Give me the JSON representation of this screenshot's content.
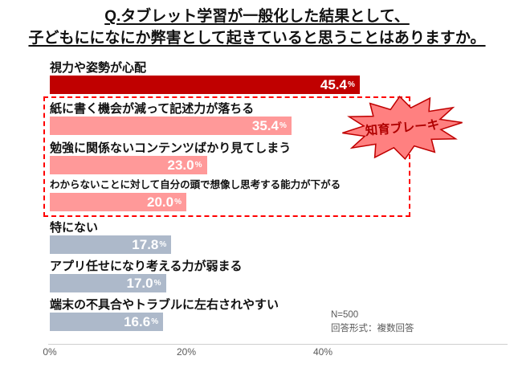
{
  "title": {
    "line1": "Q.タブレット学習が一般化した結果として、",
    "line2": "子どもにになにか弊害として起きていると思うことはありますか。"
  },
  "chart_data": {
    "type": "bar",
    "orientation": "horizontal",
    "categories": [
      "視力や姿勢が心配",
      "紙に書く機会が減って記述力が落ちる",
      "勉強に関係ないコンテンツばかり見てしまう",
      "わからないことに対して自分の頭で想像し思考する能力が下がる",
      "特にない",
      "アプリ任せになり考える力が弱まる",
      "端末の不具合やトラブルに左右されやすい"
    ],
    "values": [
      45.4,
      35.4,
      23.0,
      20.0,
      17.8,
      17.0,
      16.6
    ],
    "value_suffix": "%",
    "bar_colors": [
      "#C00000",
      "#FF9999",
      "#FF9999",
      "#FF9999",
      "#ADB9CA",
      "#ADB9CA",
      "#ADB9CA"
    ],
    "xlim": [
      0,
      67
    ],
    "x_tick_values": [
      0,
      20,
      40
    ],
    "x_tick_labels": [
      "0%",
      "20%",
      "40%"
    ],
    "highlighted_rows": [
      1,
      2,
      3
    ],
    "annotation": "知育ブレーキ",
    "legend": "none",
    "grid": false
  },
  "footnote": {
    "line1": "N=500",
    "line2": "回答形式：複数回答"
  },
  "colors": {
    "bar_primary": "#C00000",
    "bar_highlight": "#FF9999",
    "bar_neutral": "#ADB9CA",
    "highlight_box_border": "#FF0000",
    "annotation_fill": "#FF8080",
    "annotation_border": "#C00000",
    "annotation_text": "#B00000",
    "value_text": "#FFFFFF",
    "axis_text": "#595959"
  }
}
